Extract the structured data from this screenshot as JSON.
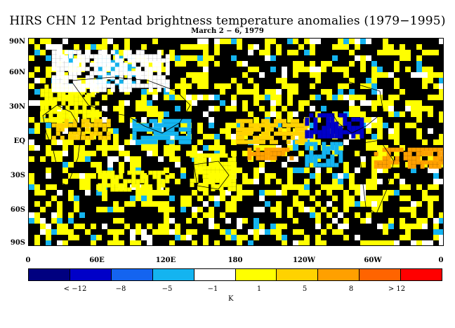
{
  "title": "HIRS CHN 12 Pentad brightness temperature anomalies (1979−1995)",
  "subtitle": "March 2 − 6, 1979",
  "latitude_labels": [
    "90N",
    "60N",
    "30N",
    "EQ",
    "30S",
    "60S",
    "90S"
  ],
  "longitude_labels": [
    "0",
    "60E",
    "120E",
    "180",
    "120W",
    "60W",
    "0"
  ],
  "colorbar": {
    "colors": [
      "#000080",
      "#0000c8",
      "#1464f0",
      "#14b4f0",
      "#ffffff",
      "#ffff00",
      "#ffd200",
      "#ffa000",
      "#ff6400",
      "#ff0000"
    ],
    "labels": [
      "< −12",
      "−8",
      "−5",
      "−1",
      "1",
      "5",
      "8",
      "> 12"
    ],
    "units": "K"
  },
  "chart_data": {
    "type": "heatmap",
    "title": "HIRS CHN 12 Pentad brightness temperature anomalies (1979−1995)",
    "subtitle": "March 2 − 6, 1979",
    "xlabel": "",
    "ylabel": "",
    "x_range": [
      0,
      360
    ],
    "y_range": [
      -90,
      90
    ],
    "x_ticks": [
      "0",
      "60E",
      "120E",
      "180",
      "120W",
      "60W",
      "0"
    ],
    "y_ticks": [
      "90N",
      "60N",
      "30N",
      "EQ",
      "30S",
      "60S",
      "90S"
    ],
    "color_levels": [
      -12,
      -8,
      -5,
      -1,
      1,
      5,
      8,
      12
    ],
    "units": "K",
    "background": "black = no data / masked",
    "anomaly_regions": [
      {
        "lon": [
          10,
          60
        ],
        "lat": [
          20,
          50
        ],
        "class": "1 to 5"
      },
      {
        "lon": [
          20,
          70
        ],
        "lat": [
          5,
          20
        ],
        "class": "5 to 8"
      },
      {
        "lon": [
          90,
          140
        ],
        "lat": [
          0,
          20
        ],
        "class": "-5 to -1"
      },
      {
        "lon": [
          140,
          180
        ],
        "lat": [
          -40,
          -10
        ],
        "class": "1 to 5"
      },
      {
        "lon": [
          180,
          240
        ],
        "lat": [
          0,
          20
        ],
        "class": "5 to 8"
      },
      {
        "lon": [
          190,
          230
        ],
        "lat": [
          -15,
          -5
        ],
        "class": "8 to 12"
      },
      {
        "lon": [
          240,
          290
        ],
        "lat": [
          5,
          25
        ],
        "class": "-12 to -8"
      },
      {
        "lon": [
          240,
          270
        ],
        "lat": [
          -20,
          0
        ],
        "class": "-5 to -1"
      },
      {
        "lon": [
          300,
          360
        ],
        "lat": [
          -20,
          -5
        ],
        "class": "8 to 12"
      },
      {
        "lon": [
          60,
          120
        ],
        "lat": [
          -40,
          -25
        ],
        "class": "1 to 5"
      },
      {
        "lon": [
          60,
          90
        ],
        "lat": [
          50,
          75
        ],
        "class": "-5 to -1"
      },
      {
        "lon": [
          20,
          120
        ],
        "lat": [
          45,
          80
        ],
        "class": "-1 to 1"
      }
    ]
  }
}
